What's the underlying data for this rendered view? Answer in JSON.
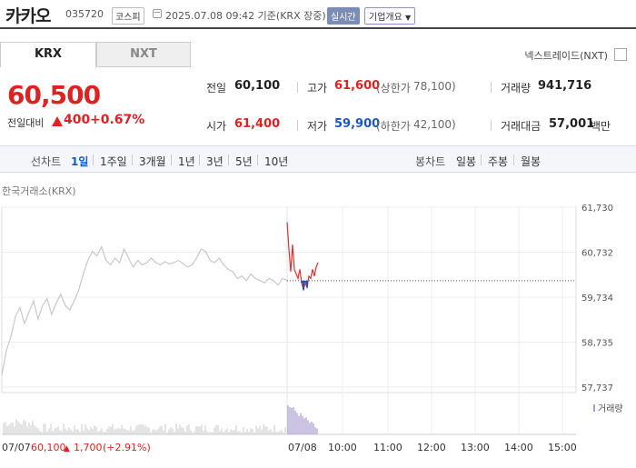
{
  "header": {
    "stock_name": "카카오",
    "stock_code": "035720",
    "market_badge": "코스피",
    "datetime": "2025.07.08 09:42 기준(KRX 장중)",
    "realtime_label": "실시간",
    "company_overview_label": "기업개요"
  },
  "tabs": {
    "krx": "KRX",
    "nxt": "NXT"
  },
  "nextrade_link": "넥스트레이드(NXT)",
  "price": {
    "current": "60,500",
    "change_label": "전일대비",
    "change_value": "400",
    "change_percent": "+0.67%"
  },
  "summary": {
    "prev_close": {
      "label": "전일",
      "value": "60,100"
    },
    "high": {
      "label": "고가",
      "value": "61,600",
      "limit_label": "(상한가",
      "limit_value": "78,100)"
    },
    "volume": {
      "label": "거래량",
      "value": "941,716"
    },
    "open": {
      "label": "시가",
      "value": "61,400"
    },
    "low": {
      "label": "저가",
      "value": "59,900",
      "limit_label": "(하한가",
      "limit_value": "42,100)"
    },
    "amount": {
      "label": "거래대금",
      "value": "57,001",
      "unit": "백만"
    }
  },
  "period_bar": {
    "line_label": "선차트",
    "line_periods": [
      "1일",
      "1주일",
      "3개월",
      "1년",
      "3년",
      "5년",
      "10년"
    ],
    "active": "1일",
    "candle_label": "봉차트",
    "candle_periods": [
      "일봉",
      "주봉",
      "월봉"
    ]
  },
  "chart_source": "한국거래소(KRX)",
  "chart_data": {
    "type": "line",
    "y_ticks": [
      "61,730",
      "60,732",
      "59,734",
      "58,735",
      "57,737"
    ],
    "ylim": [
      57737,
      61730
    ],
    "reference_price": 60100,
    "prev_day_label": "07/07",
    "prev_day_close": "60,100",
    "prev_day_change": "1,700",
    "prev_day_change_pct": "(+2.91%)",
    "today_label": "07/08",
    "x_ticks": [
      "10:00",
      "11:00",
      "12:00",
      "13:00",
      "14:00",
      "15:00"
    ],
    "volume_legend": "거래량",
    "series": [
      {
        "id": "prev_day",
        "color": "#c8c8c8",
        "values": [
          58000,
          58550,
          58850,
          59300,
          59500,
          59150,
          59400,
          59650,
          59250,
          59550,
          59700,
          59350,
          59600,
          59800,
          59550,
          59450,
          59650,
          59900,
          60250,
          60550,
          60750,
          60650,
          60850,
          60550,
          60450,
          60600,
          60500,
          60800,
          60600,
          60400,
          60550,
          60450,
          60500,
          60600,
          60500,
          60450,
          60520,
          60470,
          60500,
          60550,
          60480,
          60400,
          60450,
          60600,
          60800,
          60750,
          60550,
          60500,
          60600,
          60450,
          60350,
          60300,
          60150,
          60200,
          60100,
          60250,
          60150,
          60100,
          60050,
          60150,
          60100,
          60000,
          60150,
          60100
        ]
      },
      {
        "id": "today",
        "color": "#e03030",
        "values": [
          61400,
          60800,
          60300,
          60900,
          60350,
          60250,
          60150,
          60350,
          60050,
          59900,
          60050,
          59950,
          60200,
          60150,
          60350,
          60200,
          60400,
          60500
        ]
      }
    ]
  }
}
